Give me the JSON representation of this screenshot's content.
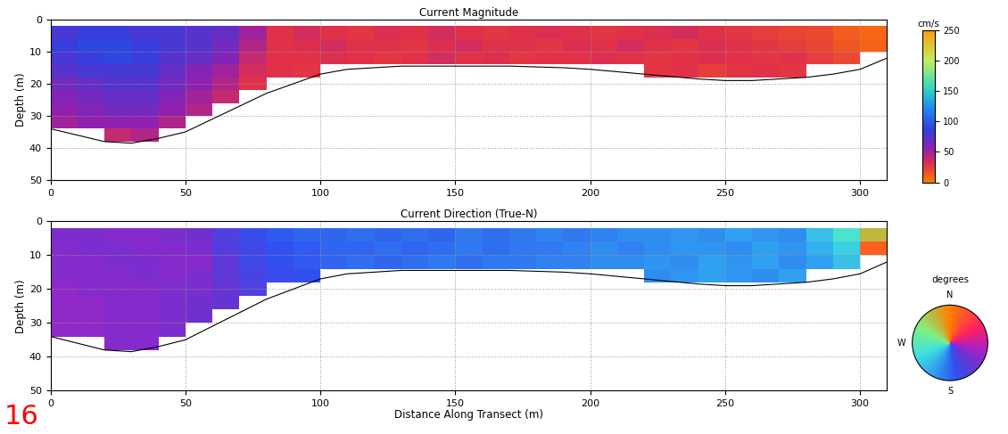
{
  "chart_data": [
    {
      "type": "heatmap",
      "title": "Current Magnitude",
      "ylabel": "Depth (m)",
      "xlim": [
        0,
        310
      ],
      "ylim": [
        50,
        0
      ],
      "xticks": [
        0,
        50,
        100,
        150,
        200,
        250,
        300
      ],
      "yticks": [
        0,
        10,
        20,
        30,
        40,
        50
      ],
      "grid": true,
      "x_edges": [
        0,
        10,
        20,
        30,
        40,
        50,
        60,
        70,
        80,
        90,
        100,
        110,
        120,
        130,
        140,
        150,
        160,
        170,
        180,
        190,
        200,
        210,
        220,
        230,
        240,
        250,
        260,
        270,
        280,
        290,
        300,
        310
      ],
      "depth_edges": [
        2,
        6,
        10,
        14,
        18,
        22,
        26,
        30,
        34,
        38
      ],
      "cells": [
        [
          80,
          85,
          85,
          80,
          80,
          75,
          70,
          50,
          30,
          35,
          30,
          28,
          32,
          30,
          35,
          30,
          28,
          30,
          32,
          30,
          28,
          30,
          32,
          35,
          30,
          28,
          25,
          22,
          20,
          12,
          8
        ],
        [
          85,
          90,
          90,
          85,
          80,
          75,
          65,
          45,
          30,
          32,
          35,
          30,
          30,
          28,
          32,
          35,
          30,
          30,
          28,
          32,
          30,
          35,
          30,
          28,
          32,
          30,
          28,
          25,
          22,
          15,
          10
        ],
        [
          80,
          85,
          90,
          85,
          75,
          70,
          60,
          40,
          30,
          30,
          32,
          30,
          28,
          30,
          35,
          30,
          32,
          28,
          30,
          30,
          32,
          30,
          28,
          30,
          32,
          30,
          28,
          30,
          25,
          20,
          null
        ],
        [
          75,
          80,
          80,
          80,
          70,
          60,
          50,
          35,
          30,
          28,
          null,
          null,
          null,
          null,
          null,
          null,
          null,
          null,
          null,
          null,
          null,
          null,
          28,
          30,
          25,
          28,
          30,
          28,
          null,
          null,
          null
        ],
        [
          65,
          70,
          75,
          75,
          65,
          55,
          45,
          30,
          null,
          null,
          null,
          null,
          null,
          null,
          null,
          null,
          null,
          null,
          null,
          null,
          null,
          null,
          null,
          null,
          null,
          null,
          null,
          null,
          null,
          null,
          null
        ],
        [
          60,
          65,
          70,
          70,
          60,
          50,
          40,
          null,
          null,
          null,
          null,
          null,
          null,
          null,
          null,
          null,
          null,
          null,
          null,
          null,
          null,
          null,
          null,
          null,
          null,
          null,
          null,
          null,
          null,
          null,
          null
        ],
        [
          55,
          60,
          65,
          65,
          55,
          45,
          null,
          null,
          null,
          null,
          null,
          null,
          null,
          null,
          null,
          null,
          null,
          null,
          null,
          null,
          null,
          null,
          null,
          null,
          null,
          null,
          null,
          null,
          null,
          null,
          null
        ],
        [
          50,
          55,
          55,
          55,
          45,
          null,
          null,
          null,
          null,
          null,
          null,
          null,
          null,
          null,
          null,
          null,
          null,
          null,
          null,
          null,
          null,
          null,
          null,
          null,
          null,
          null,
          null,
          null,
          null,
          null,
          null
        ],
        [
          null,
          null,
          40,
          45,
          null,
          null,
          null,
          null,
          null,
          null,
          null,
          null,
          null,
          null,
          null,
          null,
          null,
          null,
          null,
          null,
          null,
          null,
          null,
          null,
          null,
          null,
          null,
          null,
          null,
          null,
          null
        ]
      ],
      "bottom_line": {
        "x": [
          0,
          10,
          20,
          30,
          40,
          50,
          60,
          70,
          80,
          90,
          100,
          110,
          120,
          130,
          150,
          170,
          190,
          200,
          220,
          240,
          250,
          260,
          280,
          290,
          300,
          310
        ],
        "depth": [
          34,
          36,
          38,
          38.5,
          37,
          35,
          31,
          27,
          23,
          20,
          17,
          15.5,
          15,
          14.5,
          14.5,
          14.5,
          15,
          15.5,
          17,
          18.5,
          19,
          19,
          18,
          17,
          15.5,
          12
        ],
        "color": "#000000"
      },
      "colorbar": {
        "label": "cm/s",
        "range": [
          0,
          250
        ],
        "ticks": [
          0,
          50,
          100,
          150,
          200,
          250
        ]
      }
    },
    {
      "type": "heatmap",
      "title": "Current Direction (True-N)",
      "xlabel": "Distance Along Transect (m)",
      "ylabel": "Depth (m)",
      "xlim": [
        0,
        310
      ],
      "ylim": [
        50,
        0
      ],
      "xticks": [
        0,
        50,
        100,
        150,
        200,
        250,
        300
      ],
      "yticks": [
        0,
        10,
        20,
        30,
        40,
        50
      ],
      "grid": true,
      "x_edges": [
        0,
        10,
        20,
        30,
        40,
        50,
        60,
        70,
        80,
        90,
        100,
        110,
        120,
        130,
        140,
        150,
        160,
        170,
        180,
        190,
        200,
        210,
        220,
        230,
        240,
        250,
        260,
        270,
        280,
        290,
        300,
        310
      ],
      "depth_edges": [
        2,
        6,
        10,
        14,
        18,
        22,
        26,
        30,
        34,
        38
      ],
      "cells": [
        [
          125,
          125,
          120,
          120,
          125,
          130,
          150,
          165,
          175,
          180,
          180,
          185,
          180,
          185,
          180,
          190,
          185,
          190,
          195,
          190,
          195,
          200,
          200,
          205,
          200,
          210,
          205,
          200,
          230,
          260,
          330
        ],
        [
          120,
          125,
          125,
          120,
          120,
          125,
          145,
          160,
          170,
          175,
          180,
          180,
          185,
          180,
          185,
          190,
          185,
          190,
          190,
          195,
          200,
          195,
          200,
          205,
          205,
          200,
          210,
          205,
          220,
          240,
          20
        ],
        [
          120,
          120,
          125,
          125,
          120,
          120,
          140,
          160,
          170,
          175,
          180,
          185,
          180,
          185,
          190,
          185,
          190,
          190,
          195,
          195,
          200,
          200,
          205,
          200,
          210,
          205,
          210,
          200,
          210,
          230,
          null
        ],
        [
          120,
          120,
          120,
          125,
          120,
          125,
          140,
          155,
          165,
          170,
          null,
          null,
          null,
          null,
          null,
          null,
          null,
          null,
          null,
          null,
          null,
          null,
          200,
          205,
          210,
          205,
          200,
          210,
          null,
          null,
          null
        ],
        [
          115,
          120,
          120,
          120,
          125,
          125,
          135,
          150,
          null,
          null,
          null,
          null,
          null,
          null,
          null,
          null,
          null,
          null,
          null,
          null,
          null,
          null,
          null,
          null,
          null,
          null,
          null,
          null,
          null,
          null,
          null
        ],
        [
          115,
          115,
          120,
          120,
          125,
          130,
          135,
          null,
          null,
          null,
          null,
          null,
          null,
          null,
          null,
          null,
          null,
          null,
          null,
          null,
          null,
          null,
          null,
          null,
          null,
          null,
          null,
          null,
          null,
          null,
          null
        ],
        [
          115,
          115,
          120,
          120,
          125,
          130,
          null,
          null,
          null,
          null,
          null,
          null,
          null,
          null,
          null,
          null,
          null,
          null,
          null,
          null,
          null,
          null,
          null,
          null,
          null,
          null,
          null,
          null,
          null,
          null,
          null
        ],
        [
          115,
          115,
          120,
          120,
          125,
          null,
          null,
          null,
          null,
          null,
          null,
          null,
          null,
          null,
          null,
          null,
          null,
          null,
          null,
          null,
          null,
          null,
          null,
          null,
          null,
          null,
          null,
          null,
          null,
          null,
          null
        ],
        [
          null,
          null,
          120,
          120,
          null,
          null,
          null,
          null,
          null,
          null,
          null,
          null,
          null,
          null,
          null,
          null,
          null,
          null,
          null,
          null,
          null,
          null,
          null,
          null,
          null,
          null,
          null,
          null,
          null,
          null,
          null
        ]
      ],
      "bottom_line": {
        "x": [
          0,
          10,
          20,
          30,
          40,
          50,
          60,
          70,
          80,
          90,
          100,
          110,
          120,
          130,
          150,
          170,
          190,
          200,
          220,
          240,
          250,
          260,
          280,
          290,
          300,
          310
        ],
        "depth": [
          34,
          36,
          38,
          38.5,
          37,
          35,
          31,
          27,
          23,
          20,
          17,
          15.5,
          15,
          14.5,
          14.5,
          14.5,
          15,
          15.5,
          17,
          18.5,
          19,
          19,
          18,
          17,
          15.5,
          12
        ],
        "color": "#000000"
      },
      "colorbar": {
        "label": "degrees",
        "range": [
          0,
          360
        ],
        "ticks": [
          {
            "value": 0,
            "label": "N"
          },
          {
            "value": 270,
            "label": "W"
          },
          {
            "value": 180,
            "label": "S"
          }
        ]
      },
      "annotations": [
        {
          "text": "16"
        }
      ]
    }
  ]
}
